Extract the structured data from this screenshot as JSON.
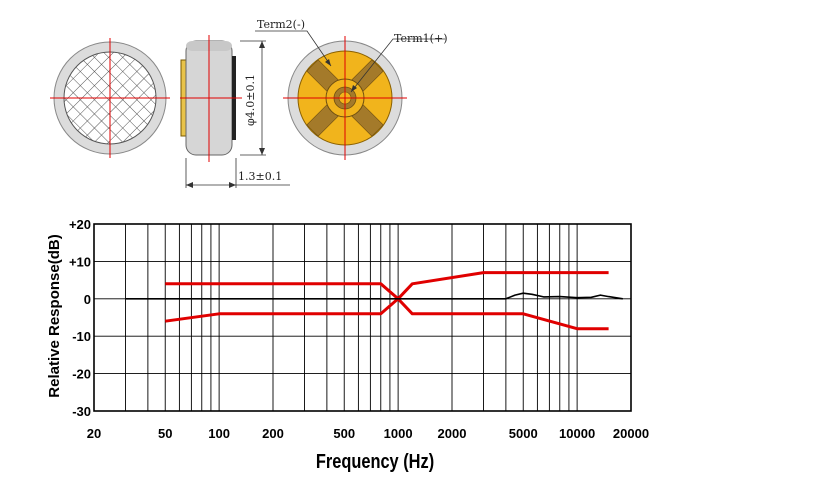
{
  "diagram": {
    "term2_label": "Term2(-)",
    "term1_label": "Term1(+)",
    "diameter_label": "φ4.0±0.1",
    "thickness_label": "1.3±0.1"
  },
  "chart_data": {
    "type": "line",
    "xlabel": "Frequency (Hz)",
    "ylabel": "Relative Response(dB)",
    "x_scale": "log",
    "xlim": [
      20,
      20000
    ],
    "ylim": [
      -30,
      20
    ],
    "grid": true,
    "x_ticks": [
      20,
      50,
      100,
      200,
      500,
      1000,
      2000,
      5000,
      10000,
      20000
    ],
    "x_tick_labels": [
      "20",
      "50",
      "100",
      "200",
      "500",
      "1000",
      "2000",
      "5000",
      "10000",
      "20000"
    ],
    "y_ticks": [
      20,
      10,
      0,
      -10,
      -20,
      -30
    ],
    "y_tick_labels": [
      "+20",
      "+10",
      "0",
      "-10",
      "-20",
      "-30"
    ],
    "colors": {
      "limits": "#e00000",
      "response": "#000000",
      "grid": "#000000"
    },
    "series": [
      {
        "role": "upper-limit",
        "color": "#e00000",
        "x": [
          50,
          800,
          1000,
          1200,
          3000,
          15000
        ],
        "y": [
          4,
          4,
          0,
          4,
          7,
          7
        ]
      },
      {
        "role": "lower-limit",
        "color": "#e00000",
        "x": [
          50,
          100,
          800,
          1000,
          1200,
          5000,
          10000,
          15000
        ],
        "y": [
          -6,
          -4,
          -4,
          0,
          -4,
          -4,
          -8,
          -8
        ]
      },
      {
        "role": "response",
        "color": "#000000",
        "x": [
          30,
          4000,
          4500,
          5000,
          5600,
          6500,
          8000,
          10000,
          12000,
          13500,
          15000,
          18000
        ],
        "y": [
          0,
          0,
          1,
          1.5,
          1.2,
          0.5,
          0.6,
          0.3,
          0.4,
          1.0,
          0.6,
          0
        ]
      }
    ]
  }
}
